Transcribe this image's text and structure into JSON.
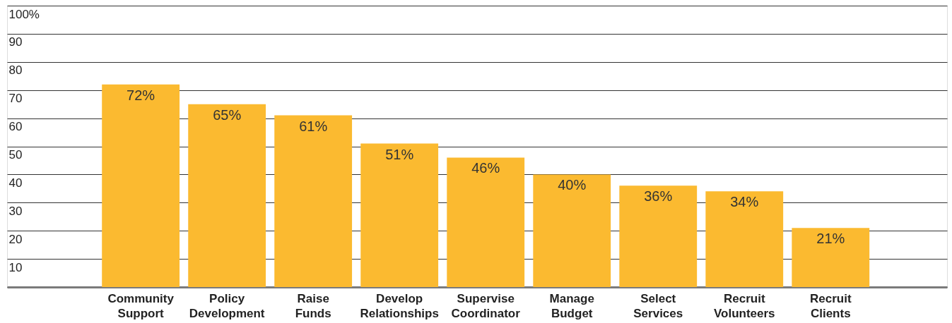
{
  "chart_data": {
    "type": "bar",
    "categories": [
      "Community Support",
      "Policy Development",
      "Raise Funds",
      "Develop Relationships",
      "Supervise Coordinator",
      "Manage Budget",
      "Select Services",
      "Recruit Volunteers",
      "Recruit Clients"
    ],
    "values": [
      72,
      65,
      61,
      51,
      46,
      40,
      36,
      34,
      21
    ],
    "value_labels": [
      "72%",
      "65%",
      "61%",
      "51%",
      "46%",
      "40%",
      "36%",
      "34%",
      "21%"
    ],
    "color": "#fbba30",
    "ylim": [
      0,
      100
    ],
    "yticks": [
      {
        "value": 0,
        "label": null
      },
      10,
      20,
      30,
      40,
      50,
      60,
      70,
      80,
      90,
      {
        "value": 100,
        "label": "100%"
      }
    ],
    "grid": "y"
  }
}
